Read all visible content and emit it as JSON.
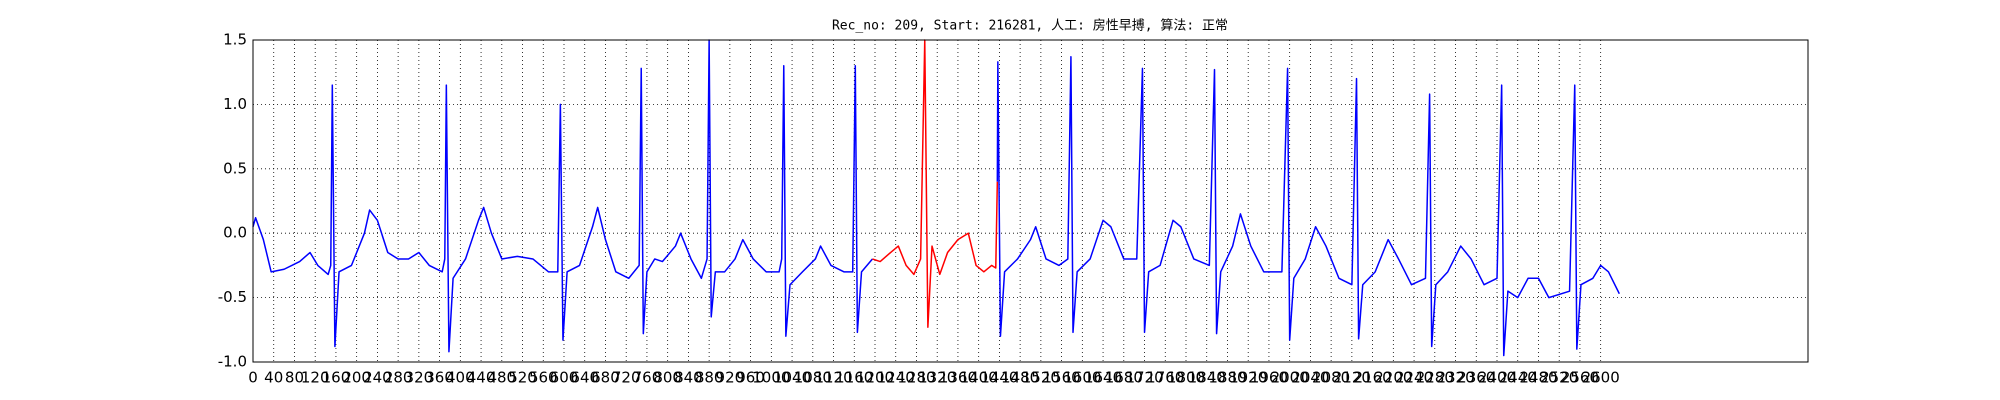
{
  "chart_data": {
    "type": "line",
    "title": "Rec_no: 209, Start: 216281, 人工: 房性早搏, 算法: 正常",
    "xlim": [
      0,
      3000
    ],
    "ylim": [
      -1,
      1.5
    ],
    "xticks": [
      0,
      40,
      80,
      120,
      160,
      200,
      240,
      280,
      320,
      360,
      400,
      440,
      480,
      520,
      560,
      600,
      640,
      680,
      720,
      760,
      800,
      840,
      880,
      920,
      960,
      1000,
      1040,
      1080,
      1120,
      1160,
      1200,
      1240,
      1280,
      1320,
      1360,
      1400,
      1440,
      1480,
      1520,
      1560,
      1600,
      1640,
      1680,
      1720,
      1760,
      1800,
      1840,
      1880,
      1920,
      1960,
      2000,
      2040,
      2080,
      2120,
      2160,
      2200,
      2240,
      2280,
      2320,
      2360,
      2400,
      2440,
      2480,
      2520,
      2560,
      2600
    ],
    "yticks": [
      {
        "value": -1,
        "label": "-1.0"
      },
      {
        "value": -0.5,
        "label": "-0.5"
      },
      {
        "value": 0,
        "label": "0.0"
      },
      {
        "value": 0.5,
        "label": "0.5"
      },
      {
        "value": 1,
        "label": "1.0"
      },
      {
        "value": 1.5,
        "label": "1.5"
      }
    ],
    "grid": true,
    "series": [
      {
        "color": "#0000ff",
        "x": [
          0,
          5,
          20,
          35,
          60,
          90,
          110,
          125,
          145,
          150,
          153,
          158,
          166,
          190,
          215,
          225,
          240,
          260,
          280,
          300,
          320,
          340,
          365,
          370,
          373,
          378,
          386,
          410,
          435,
          445,
          460,
          480,
          510,
          540,
          570,
          588,
          593,
          598,
          606,
          630,
          655,
          665,
          680,
          700,
          725,
          745,
          749,
          753,
          760,
          775,
          790,
          815,
          825,
          845,
          865,
          876,
          880,
          884,
          892,
          910,
          930,
          945,
          965,
          990,
          1015,
          1020,
          1024,
          1028,
          1036,
          1060,
          1085,
          1095,
          1115,
          1140,
          1157,
          1162,
          1166,
          1174,
          1195
        ],
        "values": [
          0.05,
          0.12,
          -0.05,
          -0.3,
          -0.28,
          -0.22,
          -0.15,
          -0.25,
          -0.32,
          -0.25,
          1.15,
          -0.88,
          -0.3,
          -0.25,
          0.0,
          0.18,
          0.1,
          -0.15,
          -0.2,
          -0.2,
          -0.15,
          -0.25,
          -0.3,
          -0.2,
          1.15,
          -0.92,
          -0.35,
          -0.2,
          0.1,
          0.2,
          0.0,
          -0.2,
          -0.18,
          -0.2,
          -0.3,
          -0.3,
          1.0,
          -0.83,
          -0.3,
          -0.25,
          0.05,
          0.2,
          -0.05,
          -0.3,
          -0.35,
          -0.25,
          1.28,
          -0.78,
          -0.3,
          -0.2,
          -0.22,
          -0.1,
          0.0,
          -0.2,
          -0.35,
          -0.2,
          1.5,
          -0.65,
          -0.3,
          -0.3,
          -0.2,
          -0.05,
          -0.2,
          -0.3,
          -0.3,
          -0.2,
          1.3,
          -0.8,
          -0.4,
          -0.3,
          -0.2,
          -0.1,
          -0.25,
          -0.3,
          -0.3,
          1.3,
          -0.77,
          -0.3,
          -0.2
        ]
      },
      {
        "color": "#ff0000",
        "x": [
          1195,
          1210,
          1230,
          1245,
          1260,
          1275,
          1288,
          1296,
          1302,
          1310,
          1325,
          1340,
          1360,
          1380,
          1395,
          1410,
          1425,
          1433,
          1436
        ],
        "values": [
          -0.2,
          -0.22,
          -0.15,
          -0.1,
          -0.25,
          -0.32,
          -0.2,
          1.5,
          -0.73,
          -0.1,
          -0.32,
          -0.15,
          -0.05,
          0.0,
          -0.25,
          -0.3,
          -0.25,
          -0.27,
          0.4
        ]
      },
      {
        "color": "#0000ff",
        "x": [
          1436,
          1437,
          1442,
          1450,
          1475,
          1500,
          1510,
          1530,
          1555,
          1572,
          1578,
          1582,
          1590,
          1615,
          1640,
          1655,
          1680,
          1705,
          1716,
          1720,
          1728,
          1750,
          1775,
          1790,
          1815,
          1845,
          1855,
          1859,
          1867,
          1890,
          1905,
          1925,
          1950,
          1985,
          1996,
          2000,
          2008,
          2030,
          2050,
          2070,
          2095,
          2120,
          2129,
          2133,
          2141,
          2165,
          2190,
          2210,
          2235,
          2262,
          2270,
          2274,
          2282,
          2305,
          2330,
          2350,
          2375,
          2400,
          2409,
          2413,
          2421,
          2440,
          2460,
          2480,
          2500,
          2540,
          2550,
          2554,
          2562,
          2585,
          2600,
          2615,
          2636
        ],
        "values": [
          0.4,
          1.33,
          -0.8,
          -0.3,
          -0.2,
          -0.05,
          0.05,
          -0.2,
          -0.25,
          -0.2,
          1.37,
          -0.77,
          -0.3,
          -0.2,
          0.1,
          0.05,
          -0.2,
          -0.2,
          1.28,
          -0.77,
          -0.3,
          -0.25,
          0.1,
          0.05,
          -0.2,
          -0.25,
          1.27,
          -0.78,
          -0.3,
          -0.1,
          0.15,
          -0.1,
          -0.3,
          -0.3,
          1.28,
          -0.83,
          -0.35,
          -0.2,
          0.05,
          -0.1,
          -0.35,
          -0.4,
          1.2,
          -0.82,
          -0.4,
          -0.3,
          -0.05,
          -0.2,
          -0.4,
          -0.35,
          1.08,
          -0.88,
          -0.4,
          -0.3,
          -0.1,
          -0.2,
          -0.4,
          -0.35,
          1.15,
          -0.95,
          -0.45,
          -0.5,
          -0.35,
          -0.35,
          -0.5,
          -0.45,
          1.15,
          -0.9,
          -0.4,
          -0.35,
          -0.25,
          -0.3,
          -0.47
        ]
      }
    ]
  }
}
